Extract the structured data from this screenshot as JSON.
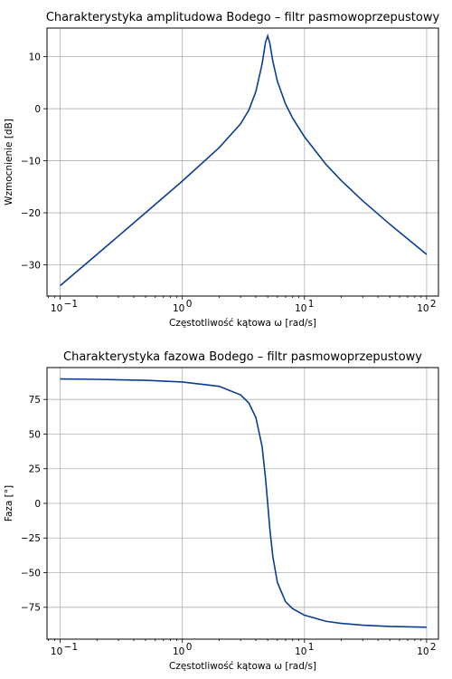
{
  "chart_data": [
    {
      "type": "line",
      "title": "Charakterystyka amplitudowa Bodego – filtr pasmowoprzepustowy",
      "xlabel": "Częstotliwość kątowa ω [rad/s]",
      "ylabel": "Wzmocnienie [dB]",
      "xscale": "log",
      "xlim": [
        0.078,
        125
      ],
      "ylim": [
        -36,
        15.5
      ],
      "xticks": [
        0.1,
        1,
        10,
        100
      ],
      "xtick_labels": [
        "10",
        "10",
        "10",
        "10"
      ],
      "xtick_exponents": [
        "−1",
        "0",
        "1",
        "2"
      ],
      "yticks": [
        -30,
        -20,
        -10,
        0,
        10
      ],
      "ytick_labels": [
        "−30",
        "−20",
        "−10",
        "0",
        "10"
      ],
      "grid": true,
      "color": "#0b3d91",
      "series": [
        {
          "x": [
            0.1,
            0.2,
            0.5,
            1,
            2,
            3,
            3.5,
            4,
            4.5,
            4.8,
            5,
            5.2,
            5.5,
            6,
            7,
            8,
            10,
            15,
            20,
            30,
            50,
            100
          ],
          "y": [
            -34.0,
            -28.0,
            -20.0,
            -13.9,
            -7.5,
            -2.9,
            -0.3,
            3.3,
            8.6,
            12.8,
            14.0,
            12.6,
            9.2,
            5.3,
            0.9,
            -1.8,
            -5.4,
            -10.7,
            -13.8,
            -17.7,
            -22.2,
            -28.0
          ]
        }
      ]
    },
    {
      "type": "line",
      "title": "Charakterystyka fazowa Bodego – filtr pasmowoprzepustowy",
      "xlabel": "Częstotliwość kątowa ω [rad/s]",
      "ylabel": "Faza [°]",
      "xscale": "log",
      "xlim": [
        0.078,
        125
      ],
      "ylim": [
        -98,
        98
      ],
      "xticks": [
        0.1,
        1,
        10,
        100
      ],
      "xtick_labels": [
        "10",
        "10",
        "10",
        "10"
      ],
      "xtick_exponents": [
        "−1",
        "0",
        "1",
        "2"
      ],
      "yticks": [
        -75,
        -50,
        -25,
        0,
        25,
        50,
        75
      ],
      "ytick_labels": [
        "−75",
        "−50",
        "−25",
        "0",
        "25",
        "50",
        "75"
      ],
      "grid": true,
      "color": "#0b3d91",
      "series": [
        {
          "x": [
            0.1,
            0.2,
            0.5,
            1,
            2,
            3,
            3.5,
            4,
            4.5,
            4.8,
            5,
            5.2,
            5.5,
            6,
            7,
            8,
            10,
            15,
            20,
            30,
            50,
            100
          ],
          "y": [
            89.8,
            89.5,
            88.8,
            87.6,
            84.5,
            78.3,
            72.5,
            62.0,
            41.0,
            18.0,
            0.0,
            -18.0,
            -38.0,
            -57.0,
            -71.0,
            -76.0,
            -80.7,
            -85.1,
            -86.6,
            -87.9,
            -88.8,
            -89.4
          ]
        }
      ]
    }
  ]
}
